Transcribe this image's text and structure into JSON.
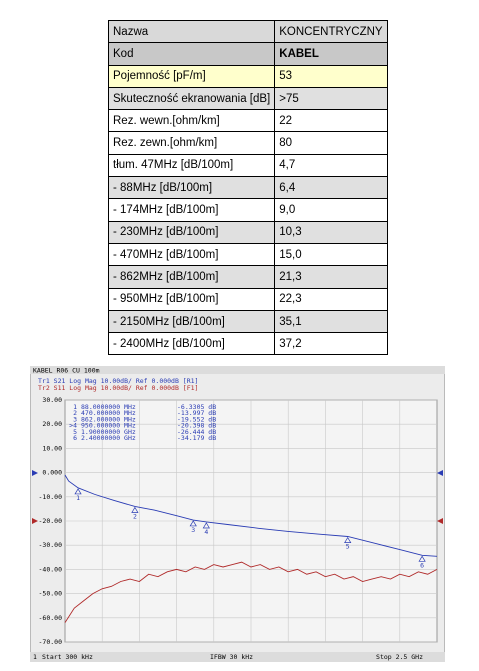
{
  "table": {
    "rows": [
      [
        "Nazwa",
        "KONCENTRYCZNY"
      ],
      [
        "Kod",
        "KABEL"
      ],
      [
        "Pojemność [pF/m]",
        "53"
      ],
      [
        "Skuteczność ekranowania [dB]",
        ">75"
      ],
      [
        "Rez. wewn.[ohm/km]",
        "22"
      ],
      [
        "Rez. zewn.[ohm/km]",
        "80"
      ],
      [
        "tłum. 47MHz [dB/100m]",
        "4,7"
      ],
      [
        "- 88MHz [dB/100m]",
        "6,4"
      ],
      [
        "- 174MHz [dB/100m]",
        "9,0"
      ],
      [
        "- 230MHz [dB/100m]",
        "10,3"
      ],
      [
        "- 470MHz [dB/100m]",
        "15,0"
      ],
      [
        "- 862MHz [dB/100m]",
        "21,3"
      ],
      [
        "- 950MHz [dB/100m]",
        "22,3"
      ],
      [
        "- 2150MHz [dB/100m]",
        "35,1"
      ],
      [
        "- 2400MHz [dB/100m]",
        "37,2"
      ]
    ]
  },
  "screenshot": {
    "title": "KABEL R06 CU 100m",
    "trace_headers": [
      "Tr1 S21 Log Mag 10.00dB/ Ref 0.000dB [R1]",
      "Tr2 S11 Log Mag 10.00dB/ Ref 0.000dB [F1]"
    ],
    "ylim": [
      -70,
      30
    ],
    "xlim": [
      0.3,
      2500
    ],
    "yticks": [
      {
        "value": 30,
        "label": "30.00"
      },
      {
        "value": 20,
        "label": "20.00"
      },
      {
        "value": 10,
        "label": "10.00"
      },
      {
        "value": 0,
        "label": "0.000"
      },
      {
        "value": -10,
        "label": "-10.00"
      },
      {
        "value": -20,
        "label": "-20.00"
      },
      {
        "value": -30,
        "label": "-30.00"
      },
      {
        "value": -40,
        "label": "-40.00"
      },
      {
        "value": -50,
        "label": "-50.00"
      },
      {
        "value": -60,
        "label": "-60.00"
      },
      {
        "value": -70,
        "label": "-70.00"
      }
    ],
    "traces": [
      {
        "name": "S21",
        "color": "#2a3cb4",
        "x": [
          0.3,
          25,
          88,
          200,
          330,
          470,
          600,
          750,
          862,
          950,
          1100,
          1300,
          1500,
          1700,
          1900,
          2100,
          2250,
          2400,
          2500
        ],
        "values": [
          -1,
          -3.5,
          -6.3,
          -9,
          -11.5,
          -14,
          -15.5,
          -17.8,
          -19.6,
          -20.4,
          -21.5,
          -23,
          -24.3,
          -25.4,
          -26.4,
          -29.5,
          -31.8,
          -34.2,
          -34.6
        ]
      },
      {
        "name": "S11",
        "color": "#b02a2a",
        "x": [
          0.3,
          62.5,
          125,
          187.5,
          250,
          312.5,
          375,
          437.5,
          500,
          562.5,
          625,
          687.5,
          750,
          812.5,
          875,
          937.5,
          1000,
          1062.5,
          1125,
          1187.5,
          1250,
          1312.5,
          1375,
          1437.5,
          1500,
          1562.5,
          1625,
          1687.5,
          1750,
          1812.5,
          1875,
          1937.5,
          2000,
          2062.5,
          2125,
          2187.5,
          2250,
          2312.5,
          2375,
          2437.5,
          2500
        ],
        "values": [
          -62,
          -56,
          -53,
          -50,
          -48,
          -47,
          -45,
          -44,
          -45,
          -42,
          -43,
          -41,
          -40,
          -41,
          -39,
          -40,
          -38,
          -39,
          -38,
          -37,
          -39,
          -38,
          -40,
          -39,
          -41,
          -40,
          -42,
          -41,
          -43,
          -42,
          -44,
          -43,
          -45,
          -44,
          -43,
          -44,
          -42,
          -43,
          -41,
          -42,
          -40
        ]
      }
    ],
    "markers": [
      {
        "list_id": "1",
        "label": "1",
        "x": 88,
        "x_label": "88.0000000 MHz",
        "value": -6.3305,
        "value_label": "-6.3305 dB"
      },
      {
        "list_id": "2",
        "label": "2",
        "x": 470,
        "x_label": "470.000000 MHz",
        "value": -13.997,
        "value_label": "-13.997 dB"
      },
      {
        "list_id": "3",
        "label": "3",
        "x": 862,
        "x_label": "862.000000 MHz",
        "value": -19.552,
        "value_label": "-19.552 dB"
      },
      {
        "list_id": ">4",
        "label": "4",
        "x": 950,
        "x_label": "950.000000 MHz",
        "value": -20.398,
        "value_label": "-20.398 dB"
      },
      {
        "list_id": "5",
        "label": "5",
        "x": 1900,
        "x_label": "1.90000000 GHz",
        "value": -26.444,
        "value_label": "-26.444 dB"
      },
      {
        "list_id": "6",
        "label": "6",
        "x": 2400,
        "x_label": "2.40000000 GHz",
        "value": -34.179,
        "value_label": "-34.179 dB"
      }
    ],
    "footer": {
      "channel": "1",
      "start": "Start 300 kHz",
      "ifbw": "IFBW 30 kHz",
      "stop": "Stop 2.5 GHz"
    }
  }
}
